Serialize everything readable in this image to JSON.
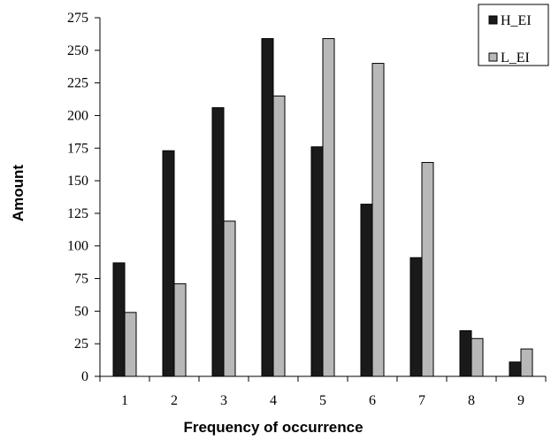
{
  "chart_data": {
    "type": "bar",
    "title": "",
    "xlabel": "Frequency of occurrence",
    "ylabel": "Amount",
    "categories": [
      "1",
      "2",
      "3",
      "4",
      "5",
      "6",
      "7",
      "8",
      "9"
    ],
    "series": [
      {
        "name": "H_EI",
        "color": "#1a1a1a",
        "values": [
          87,
          173,
          206,
          259,
          176,
          132,
          91,
          35,
          11
        ]
      },
      {
        "name": "L_EI",
        "color": "#b8b8b8",
        "values": [
          49,
          71,
          119,
          215,
          259,
          240,
          164,
          29,
          21
        ]
      }
    ],
    "ylim": [
      0,
      275
    ],
    "yticks": [
      0,
      25,
      50,
      75,
      100,
      125,
      150,
      175,
      200,
      225,
      250,
      275
    ],
    "grid": false,
    "legend_position": "top-right"
  }
}
